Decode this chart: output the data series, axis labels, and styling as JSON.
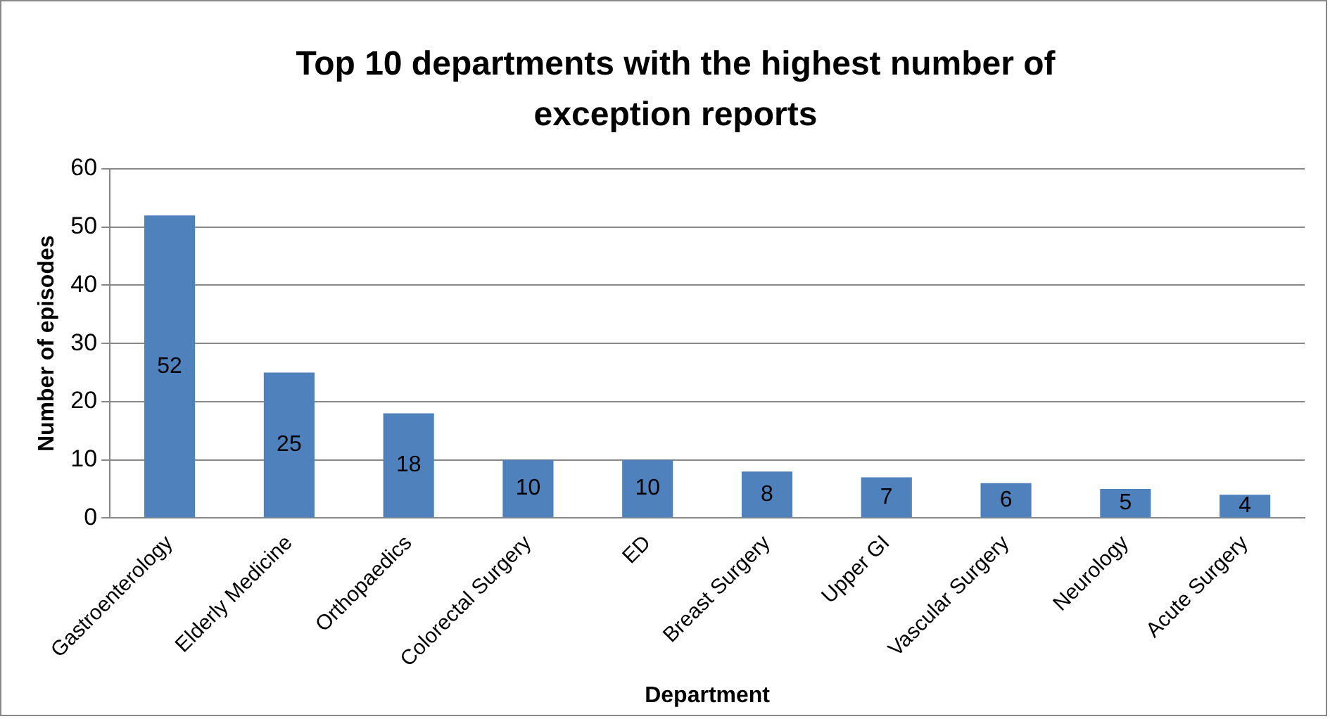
{
  "chart_data": {
    "type": "bar",
    "title": "Top 10 departments with the highest number of exception reports",
    "xlabel": "Department",
    "ylabel": "Number of episodes",
    "categories": [
      "Gastroenterology",
      "Elderly Medicine",
      "Orthopaedics",
      "Colorectal Surgery",
      "ED",
      "Breast Surgery",
      "Upper GI",
      "Vascular Surgery",
      "Neurology",
      "Acute Surgery"
    ],
    "values": [
      52,
      25,
      18,
      10,
      10,
      8,
      7,
      6,
      5,
      4
    ],
    "color": "#4f81bd",
    "ylim": [
      0,
      60
    ],
    "yticks": [
      0,
      10,
      20,
      30,
      40,
      50,
      60
    ],
    "grid": "y",
    "data_labels": true
  }
}
